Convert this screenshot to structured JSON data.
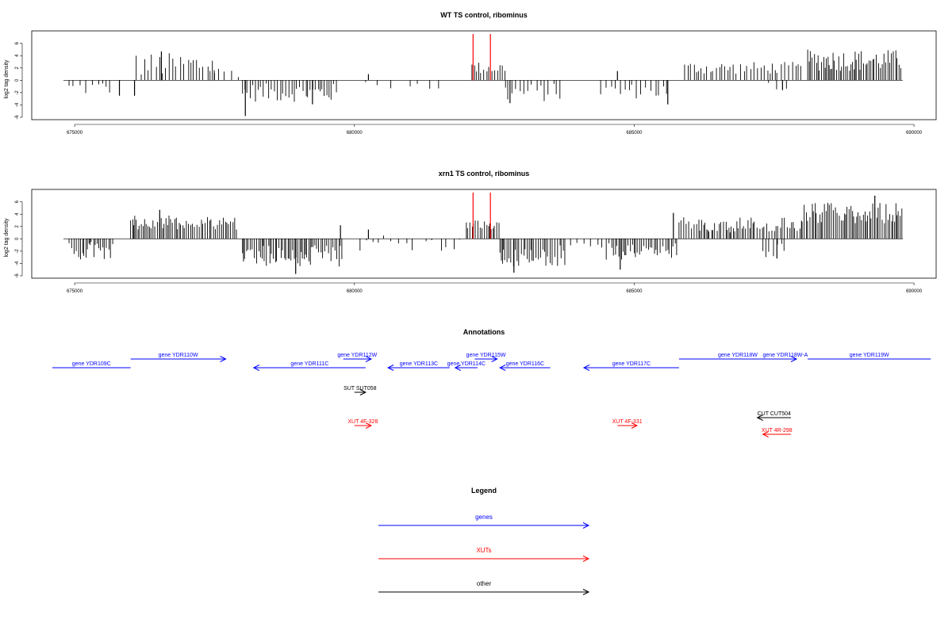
{
  "colors": {
    "gene": "#0000ff",
    "xut": "#ff0000",
    "other": "#000000",
    "highlight": "#ff0000"
  },
  "chart_data": [
    {
      "type": "bar",
      "title": "WT TS control, ribominus",
      "ylabel": "log2 tag density",
      "xlim": [
        674800,
        689800
      ],
      "ylim": [
        -6,
        7.5
      ],
      "xticks": [
        675000,
        680000,
        685000,
        690000
      ],
      "xtick_labels": [
        "675000",
        "680000",
        "685000",
        "690000"
      ],
      "yticks": [
        -6,
        -4,
        -2,
        0,
        2,
        4,
        6
      ],
      "ytick_labels": [
        "-6",
        "-4",
        "-2",
        "0",
        "2",
        "4",
        "6"
      ],
      "highlight_x": [
        682120,
        682430
      ],
      "segments": [
        {
          "x_start": 674900,
          "x_end": 675700,
          "y_min": -2.5,
          "y_max": 0,
          "density": 0.35
        },
        {
          "x_start": 676100,
          "x_end": 677500,
          "y_min": 0.5,
          "y_max": 4.5,
          "density": 0.45
        },
        {
          "x_start": 677500,
          "x_end": 678000,
          "y_min": 0.5,
          "y_max": 2.2,
          "density": 0.3
        },
        {
          "x_start": 678000,
          "x_end": 679700,
          "y_min": -3.5,
          "y_max": -0.5,
          "density": 0.7
        },
        {
          "x_start": 680200,
          "x_end": 681600,
          "y_min": -1.5,
          "y_max": 0,
          "density": 0.12
        },
        {
          "x_start": 682100,
          "x_end": 682700,
          "y_min": 1.0,
          "y_max": 3.0,
          "density": 0.75
        },
        {
          "x_start": 682700,
          "x_end": 683700,
          "y_min": -3.5,
          "y_max": -0.5,
          "density": 0.4
        },
        {
          "x_start": 684400,
          "x_end": 685600,
          "y_min": -3.0,
          "y_max": -0.5,
          "density": 0.45
        },
        {
          "x_start": 685900,
          "x_end": 688000,
          "y_min": 1.0,
          "y_max": 3.0,
          "density": 0.55
        },
        {
          "x_start": 687400,
          "x_end": 687800,
          "y_min": -1.5,
          "y_max": -0.3,
          "density": 0.2
        },
        {
          "x_start": 688100,
          "x_end": 689800,
          "y_min": 1.5,
          "y_max": 5.0,
          "density": 0.95
        }
      ],
      "bars": [
        {
          "x": 678050,
          "y": -5.8
        },
        {
          "x": 676550,
          "y": 4.7
        },
        {
          "x": 680250,
          "y": 1.0
        },
        {
          "x": 684700,
          "y": 1.5
        },
        {
          "x": 685600,
          "y": -3.9
        },
        {
          "x": 682780,
          "y": -3.7
        },
        {
          "x": 679250,
          "y": -3.9
        },
        {
          "x": 675800,
          "y": -2.5
        },
        {
          "x": 676070,
          "y": -2.5
        },
        {
          "x": 687650,
          "y": -1.6
        }
      ]
    },
    {
      "type": "bar",
      "title": "xrn1 TS control, ribominus",
      "ylabel": "log2 tag density",
      "xlim": [
        674800,
        689800
      ],
      "ylim": [
        -6,
        7.5
      ],
      "xticks": [
        675000,
        680000,
        685000,
        690000
      ],
      "xtick_labels": [
        "675000",
        "680000",
        "685000",
        "690000"
      ],
      "yticks": [
        -6,
        -4,
        -2,
        0,
        2,
        4,
        6
      ],
      "ytick_labels": [
        "-6",
        "-4",
        "-2",
        "0",
        "2",
        "4",
        "6"
      ],
      "highlight_x": [
        682120,
        682430
      ],
      "segments": [
        {
          "x_start": 674900,
          "x_end": 675700,
          "y_min": -3.5,
          "y_max": -0.5,
          "density": 0.85
        },
        {
          "x_start": 676000,
          "x_end": 677900,
          "y_min": 1.5,
          "y_max": 3.8,
          "density": 0.95
        },
        {
          "x_start": 678000,
          "x_end": 679800,
          "y_min": -4.5,
          "y_max": -1.0,
          "density": 1.0
        },
        {
          "x_start": 680100,
          "x_end": 682000,
          "y_min": -2.0,
          "y_max": 1.0,
          "density": 0.25
        },
        {
          "x_start": 682000,
          "x_end": 682600,
          "y_min": 1.5,
          "y_max": 3.0,
          "density": 0.95
        },
        {
          "x_start": 682600,
          "x_end": 683800,
          "y_min": -4.5,
          "y_max": -1.0,
          "density": 0.9
        },
        {
          "x_start": 683800,
          "x_end": 684500,
          "y_min": -1.5,
          "y_max": 0.5,
          "density": 0.25
        },
        {
          "x_start": 684500,
          "x_end": 685800,
          "y_min": -3.5,
          "y_max": -0.5,
          "density": 0.85
        },
        {
          "x_start": 685800,
          "x_end": 688000,
          "y_min": 1.0,
          "y_max": 3.5,
          "density": 0.85
        },
        {
          "x_start": 687300,
          "x_end": 687700,
          "y_min": -3.0,
          "y_max": -0.5,
          "density": 0.5
        },
        {
          "x_start": 688000,
          "x_end": 689800,
          "y_min": 2.5,
          "y_max": 6.0,
          "density": 1.0
        }
      ],
      "bars": [
        {
          "x": 676520,
          "y": 4.7
        },
        {
          "x": 678950,
          "y": -5.7
        },
        {
          "x": 682850,
          "y": -5.5
        },
        {
          "x": 689300,
          "y": 7.0
        },
        {
          "x": 684750,
          "y": -5.0
        },
        {
          "x": 685700,
          "y": 4.2
        },
        {
          "x": 687550,
          "y": -3.2
        },
        {
          "x": 680250,
          "y": 1.5
        },
        {
          "x": 679750,
          "y": 2.2
        }
      ]
    }
  ],
  "annotations": {
    "title": "Annotations",
    "items": [
      {
        "label": "gene YDR109C",
        "start": 674600,
        "end": 676000,
        "strand": "-",
        "type": "gene",
        "row": 1,
        "arrow": false
      },
      {
        "label": "gene YDR110W",
        "start": 676000,
        "end": 677700,
        "strand": "+",
        "type": "gene",
        "row": 0,
        "arrow": true
      },
      {
        "label": "gene YDR111C",
        "start": 678200,
        "end": 680200,
        "strand": "-",
        "type": "gene",
        "row": 1,
        "arrow": true
      },
      {
        "label": "gene YDR112W",
        "start": 679800,
        "end": 680300,
        "strand": "+",
        "type": "gene",
        "row": 0,
        "arrow": true
      },
      {
        "label": "gene YDR113C",
        "start": 680600,
        "end": 681700,
        "strand": "-",
        "type": "gene",
        "row": 1,
        "arrow": true
      },
      {
        "label": "gene YDR114C",
        "start": 681800,
        "end": 682200,
        "strand": "-",
        "type": "gene",
        "row": 1,
        "arrow": true
      },
      {
        "label": "gene YDR115W",
        "start": 682150,
        "end": 682550,
        "strand": "+",
        "type": "gene",
        "row": 0,
        "arrow": true
      },
      {
        "label": "gene YDR116C",
        "start": 682600,
        "end": 683500,
        "strand": "-",
        "type": "gene",
        "row": 1,
        "arrow": true
      },
      {
        "label": "gene YDR117C",
        "start": 684100,
        "end": 685800,
        "strand": "-",
        "type": "gene",
        "row": 1,
        "arrow": true
      },
      {
        "label": "gene YDR118W",
        "start": 685800,
        "end": 687900,
        "strand": "+",
        "type": "gene",
        "row": 0,
        "arrow": false
      },
      {
        "label": "gene YDR118W-A",
        "start": 687500,
        "end": 687900,
        "strand": "+",
        "type": "gene",
        "row": 0,
        "arrow": true
      },
      {
        "label": "gene YDR119W",
        "start": 688100,
        "end": 690300,
        "strand": "+",
        "type": "gene",
        "row": 0,
        "arrow": false
      },
      {
        "label": "SUT SUT058",
        "start": 680000,
        "end": 680200,
        "strand": "+",
        "type": "other",
        "row": 2,
        "arrow": true
      },
      {
        "label": "CUT CUT504",
        "start": 687200,
        "end": 687800,
        "strand": "-",
        "type": "other",
        "row": 3,
        "arrow": true
      },
      {
        "label": "XUT 4F-328",
        "start": 680000,
        "end": 680300,
        "strand": "+",
        "type": "xut",
        "row": 4,
        "arrow": true
      },
      {
        "label": "XUT 4F-331",
        "start": 684700,
        "end": 685050,
        "strand": "+",
        "type": "xut",
        "row": 4,
        "arrow": true
      },
      {
        "label": "XUT 4R-298",
        "start": 687300,
        "end": 687800,
        "strand": "-",
        "type": "xut",
        "row": 5,
        "arrow": true
      }
    ]
  },
  "legend": {
    "title": "Legend",
    "items": [
      {
        "label": "genes",
        "type": "gene"
      },
      {
        "label": "XUTs",
        "type": "xut"
      },
      {
        "label": "other",
        "type": "other"
      }
    ]
  }
}
